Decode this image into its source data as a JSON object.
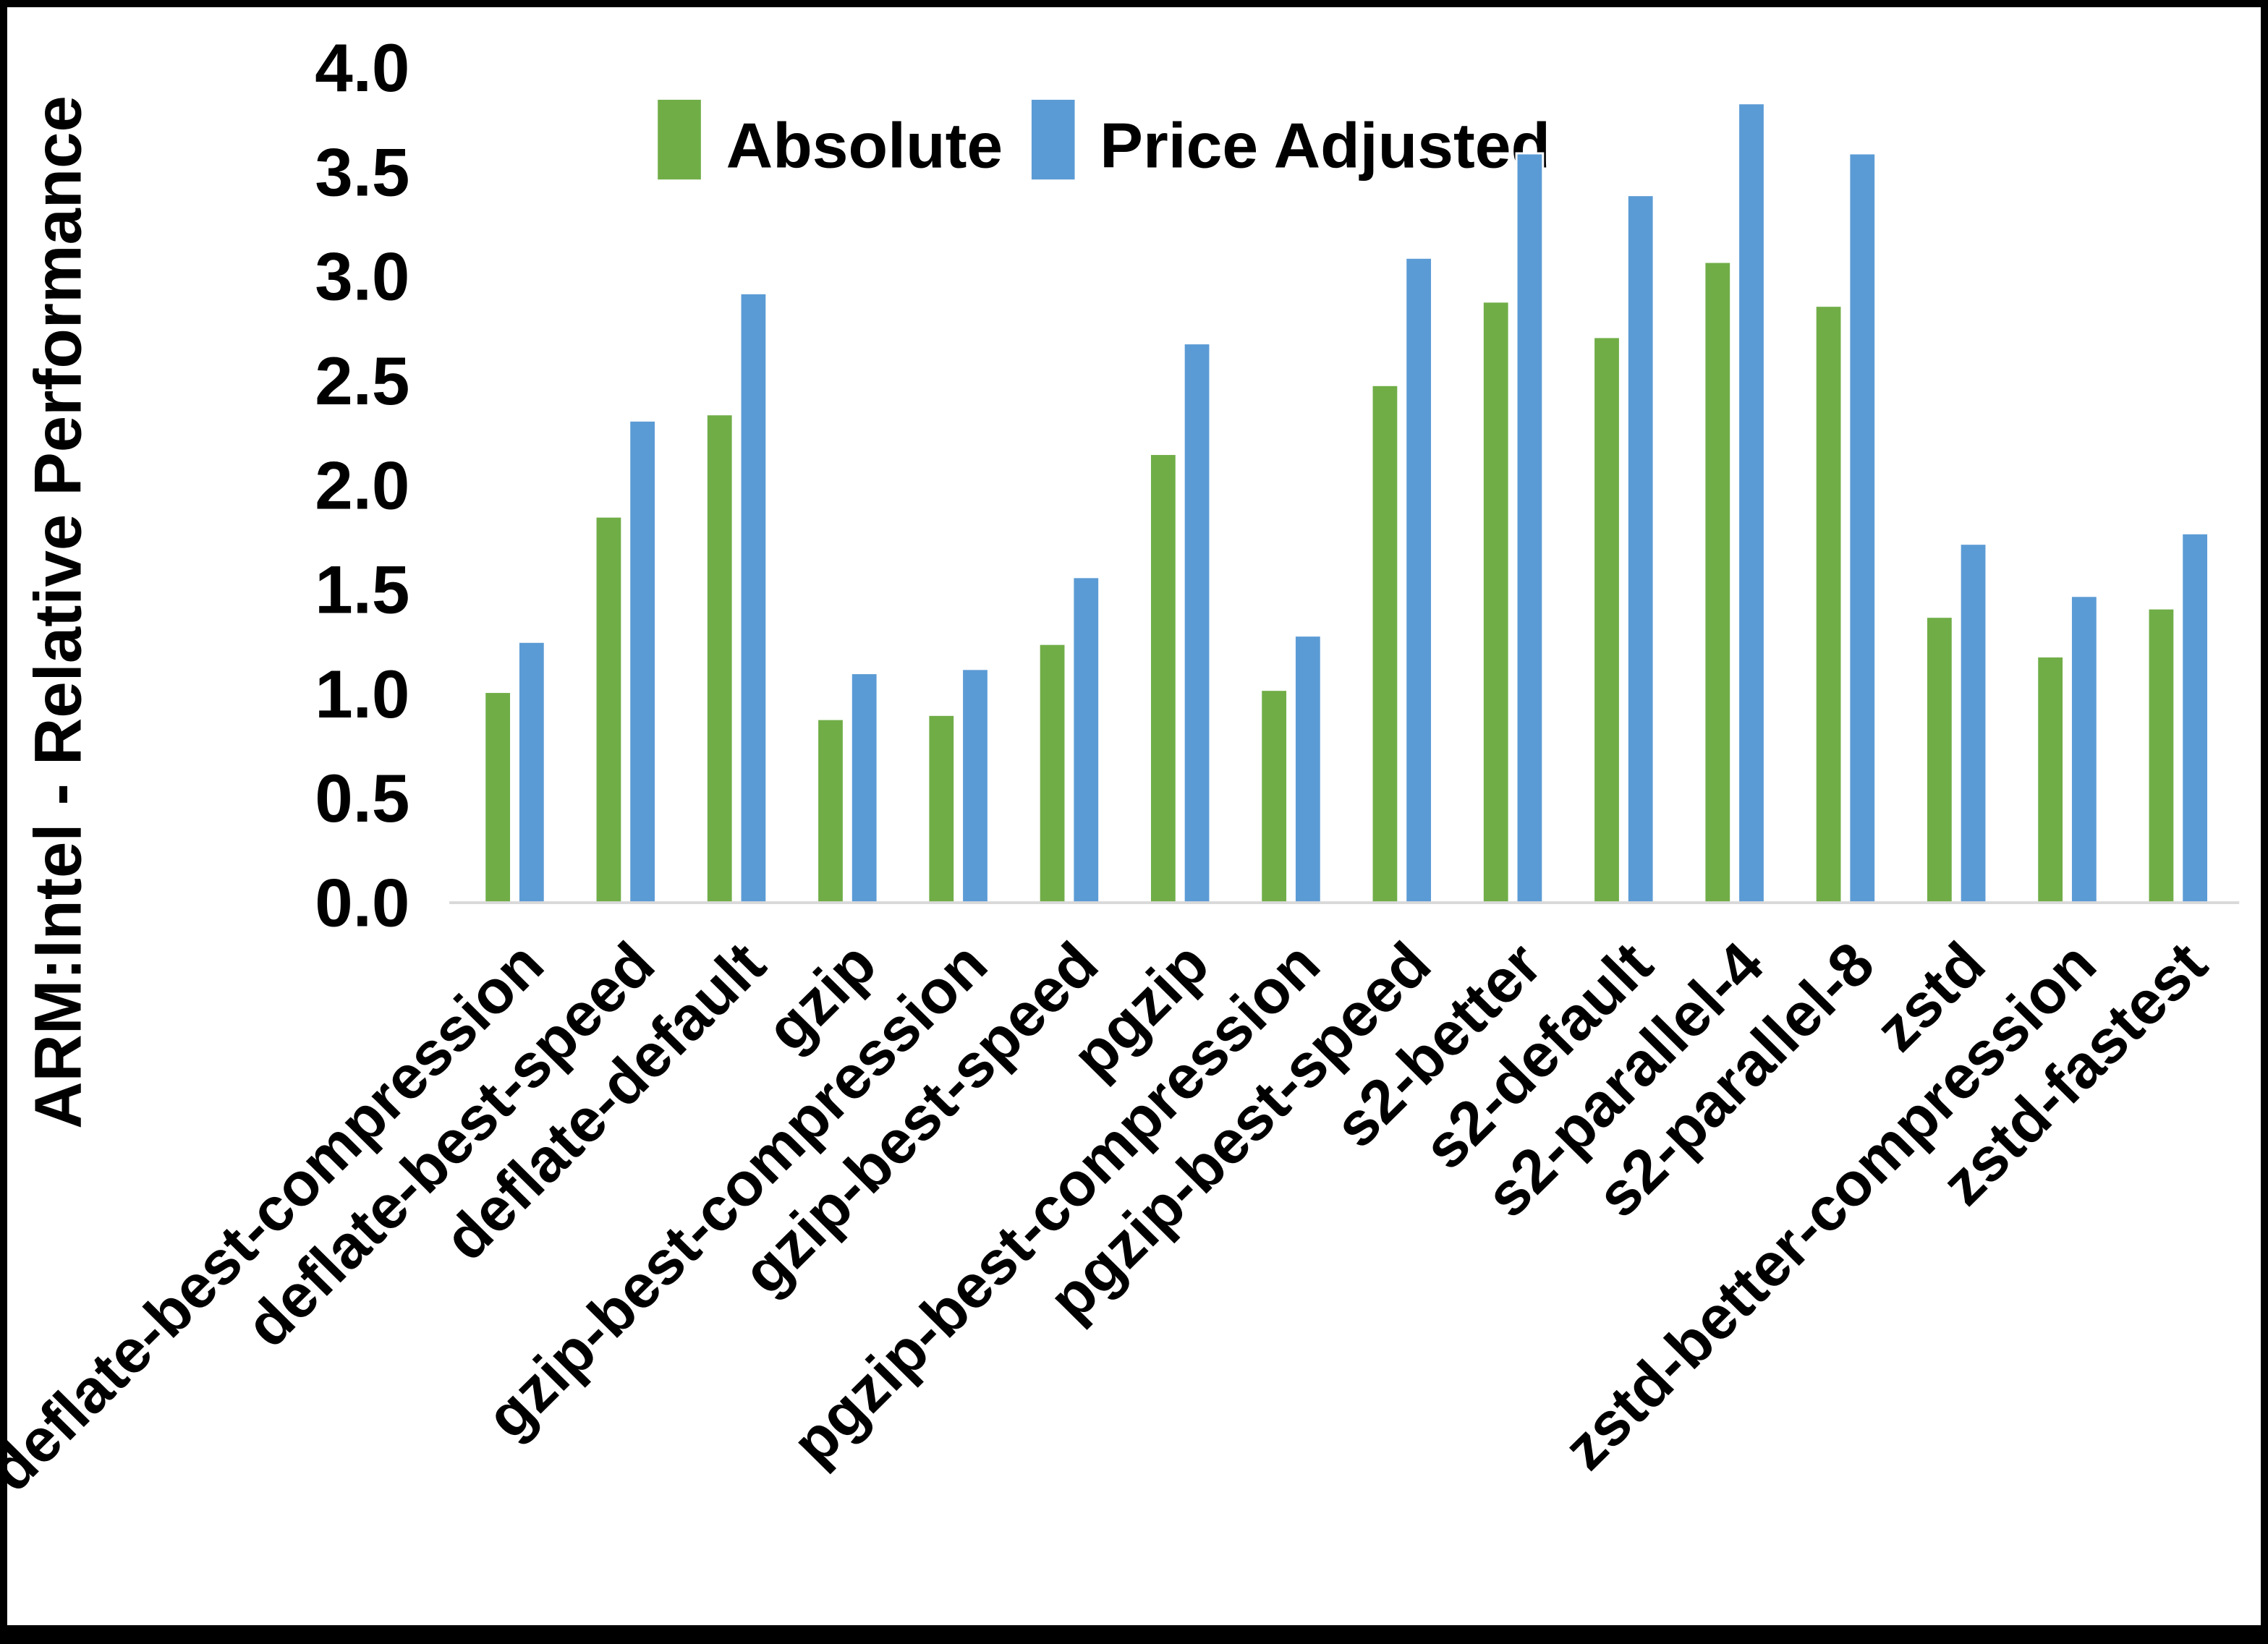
{
  "figure": {
    "background": "#ffffff",
    "border_color": "#000000"
  },
  "chart_data": {
    "type": "bar",
    "title": "",
    "xlabel": "",
    "ylabel": "ARM:Intel - Relative Performance",
    "ylim": [
      0.0,
      4.0
    ],
    "ytick_step": 0.5,
    "ytick_labels": [
      "0.0",
      "0.5",
      "1.0",
      "1.5",
      "2.0",
      "2.5",
      "3.0",
      "3.5",
      "4.0"
    ],
    "grid": false,
    "legend_position": "top-center",
    "axis_line_color": "#D9D9D9",
    "categories": [
      "deflate-best-compression",
      "deflate-best-speed",
      "deflate-default",
      "gzip",
      "gzip-best-compression",
      "gzip-best-speed",
      "pgzip",
      "pgzip-best-compression",
      "pgzip-best-speed",
      "s2-better",
      "s2-default",
      "s2-parallel-4",
      "s2-parallel-8",
      "zstd",
      "zstd-better-compression",
      "zstd-fastest"
    ],
    "series": [
      {
        "name": "Absolute",
        "color": "#70AD47",
        "values": [
          1.01,
          1.85,
          2.34,
          0.88,
          0.9,
          1.24,
          2.15,
          1.02,
          2.48,
          2.88,
          2.71,
          3.07,
          2.86,
          1.37,
          1.18,
          1.41
        ]
      },
      {
        "name": "Price Adjusted",
        "color": "#5B9BD5",
        "values": [
          1.25,
          2.31,
          2.92,
          1.1,
          1.12,
          1.56,
          2.68,
          1.28,
          3.09,
          3.59,
          3.39,
          3.83,
          3.59,
          1.72,
          1.47,
          1.77
        ]
      }
    ]
  }
}
